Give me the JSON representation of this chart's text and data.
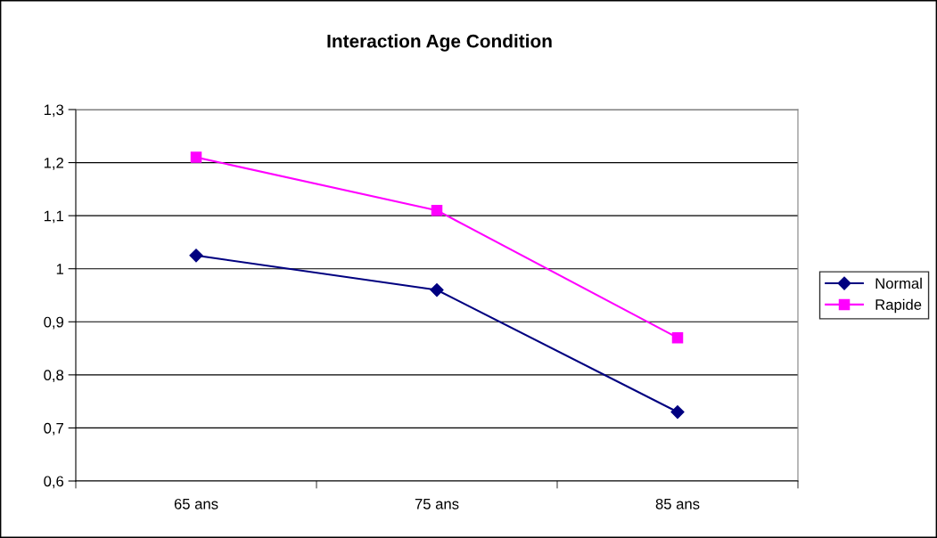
{
  "chart_data": {
    "type": "line",
    "title": "Interaction Age Condition",
    "categories": [
      "65 ans",
      "75 ans",
      "85 ans"
    ],
    "series": [
      {
        "name": "Normal",
        "color": "#000080",
        "values": [
          1.025,
          0.96,
          0.73
        ],
        "marker": "diamond"
      },
      {
        "name": "Rapide",
        "color": "#ff00ff",
        "values": [
          1.21,
          1.11,
          0.87
        ],
        "marker": "square"
      }
    ],
    "ylim": [
      0.6,
      1.3
    ],
    "yticks": [
      {
        "value": 0.6,
        "label": "0,6"
      },
      {
        "value": 0.7,
        "label": "0,7"
      },
      {
        "value": 0.8,
        "label": "0,8"
      },
      {
        "value": 0.9,
        "label": "0,9"
      },
      {
        "value": 1,
        "label": "1"
      },
      {
        "value": 1.1,
        "label": "1,1"
      },
      {
        "value": 1.2,
        "label": "1,2"
      },
      {
        "value": 1.3,
        "label": "1,3"
      }
    ],
    "grid": "y",
    "legend": "right",
    "line_style": "solid"
  }
}
